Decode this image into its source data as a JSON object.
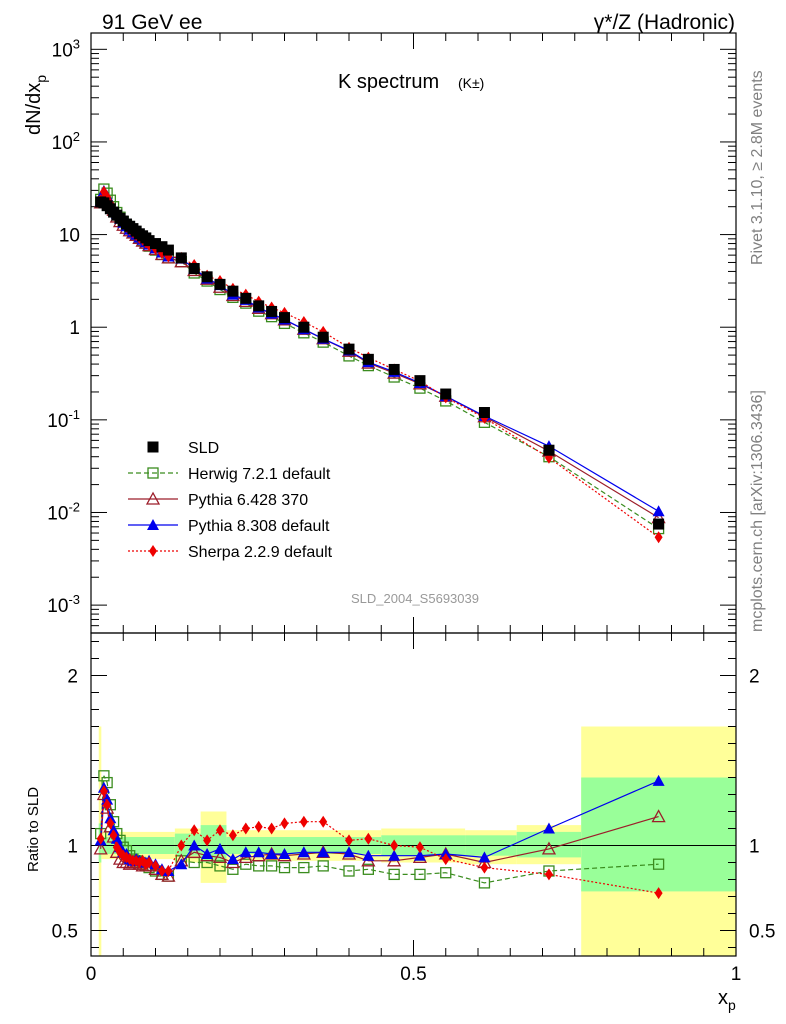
{
  "header": {
    "left": "91 GeV ee",
    "right": "γ*/Z (Hadronic)"
  },
  "side_labels": {
    "top": "Rivet 3.1.10, ≥ 2.8M events",
    "bottom": "mcplots.cern.ch [arXiv:1306.3436]"
  },
  "chart_data": {
    "type": "line",
    "title": "K spectrum",
    "title_sub": "(K±)",
    "watermark": "SLD_2004_S5693039",
    "xlabel": "xp",
    "ylabel_main": "dN/dxp",
    "ylabel_ratio": "Ratio to SLD",
    "xlim": [
      0,
      1
    ],
    "ylim_main": [
      0.0005,
      1500
    ],
    "yscale_main": "log",
    "ylim_ratio": [
      0.35,
      2.25
    ],
    "x_ticks": [
      "0",
      "0.5",
      "1"
    ],
    "y_ticks_main": [
      "10^-3",
      "10^-2",
      "10^-1",
      "1",
      "10",
      "10^2",
      "10^3"
    ],
    "y_ticks_ratio": [
      "0.5",
      "1",
      "2"
    ],
    "legend_position": "lower-left",
    "colors": {
      "data": "#000000",
      "herwig": "#3a8c1e",
      "pythia6": "#9c1d2a",
      "pythia8": "#0000ee",
      "sherpa": "#ee0000",
      "band_inner": "#99ff99",
      "band_outer": "#ffff99"
    },
    "x": [
      0.015,
      0.02,
      0.025,
      0.03,
      0.035,
      0.04,
      0.045,
      0.05,
      0.055,
      0.06,
      0.065,
      0.07,
      0.075,
      0.08,
      0.085,
      0.09,
      0.1,
      0.11,
      0.12,
      0.14,
      0.16,
      0.18,
      0.2,
      0.22,
      0.24,
      0.26,
      0.28,
      0.3,
      0.33,
      0.36,
      0.4,
      0.43,
      0.47,
      0.51,
      0.55,
      0.61,
      0.71,
      0.88
    ],
    "series": [
      {
        "name": "SLD",
        "key": "data",
        "values": [
          22.5,
          22,
          20.5,
          19,
          17.5,
          16.2,
          15,
          14,
          13,
          12.3,
          11.6,
          10.9,
          10.2,
          9.7,
          9.2,
          8.6,
          8,
          7.4,
          6.8,
          5.6,
          4.3,
          3.5,
          2.9,
          2.45,
          2.05,
          1.7,
          1.48,
          1.27,
          1.0,
          0.78,
          0.58,
          0.45,
          0.35,
          0.265,
          0.19,
          0.12,
          0.047,
          0.0075
        ]
      },
      {
        "name": "Herwig 7.2.1 default",
        "key": "herwig",
        "values": [
          24,
          31,
          28,
          23.5,
          20,
          17.3,
          15.4,
          13.8,
          12.6,
          11.5,
          10.6,
          9.9,
          9.2,
          8.6,
          8.1,
          7.5,
          6.8,
          6.1,
          5.6,
          5.1,
          3.85,
          3.15,
          2.55,
          2.1,
          1.82,
          1.49,
          1.3,
          1.1,
          0.87,
          0.69,
          0.49,
          0.385,
          0.29,
          0.22,
          0.16,
          0.094,
          0.04,
          0.0067
        ]
      },
      {
        "name": "Pythia 6.428 370",
        "key": "pythia6",
        "values": [
          22,
          28.5,
          25,
          21,
          18.3,
          15.5,
          13.8,
          12.6,
          11.7,
          11,
          10.4,
          9.8,
          9.1,
          8.5,
          8.1,
          7.6,
          6.9,
          6.1,
          5.6,
          5.1,
          4.1,
          3.3,
          2.7,
          2.2,
          1.9,
          1.6,
          1.4,
          1.2,
          0.95,
          0.75,
          0.55,
          0.41,
          0.32,
          0.245,
          0.18,
          0.108,
          0.046,
          0.0088
        ]
      },
      {
        "name": "Pythia 8.308 default",
        "key": "pythia8",
        "values": [
          23,
          29.5,
          26,
          22,
          19,
          16.8,
          14.8,
          13.4,
          12.3,
          11.3,
          10.6,
          10,
          9.3,
          8.8,
          8.3,
          7.8,
          7.1,
          6.4,
          5.8,
          5.5,
          4.3,
          3.35,
          2.85,
          2.25,
          1.97,
          1.63,
          1.4,
          1.21,
          0.95,
          0.75,
          0.56,
          0.42,
          0.33,
          0.25,
          0.18,
          0.11,
          0.052,
          0.0103
        ]
      },
      {
        "name": "Sherpa 2.2.9 default",
        "key": "sherpa",
        "values": [
          23.5,
          29,
          25.5,
          21.5,
          18.6,
          16.1,
          14.4,
          13.2,
          12.1,
          11.3,
          10.6,
          9.9,
          9.2,
          8.8,
          8.2,
          7.7,
          7.0,
          6.3,
          5.8,
          5.6,
          4.7,
          3.6,
          3.15,
          2.6,
          2.25,
          1.89,
          1.63,
          1.43,
          1.14,
          0.89,
          0.6,
          0.47,
          0.35,
          0.262,
          0.175,
          0.105,
          0.039,
          0.0054
        ]
      }
    ],
    "ratio": {
      "herwig": [
        1.07,
        1.41,
        1.37,
        1.24,
        1.14,
        1.07,
        1.03,
        0.99,
        0.97,
        0.94,
        0.92,
        0.91,
        0.9,
        0.89,
        0.88,
        0.87,
        0.85,
        0.83,
        0.82,
        0.91,
        0.9,
        0.9,
        0.88,
        0.86,
        0.89,
        0.88,
        0.88,
        0.87,
        0.87,
        0.88,
        0.85,
        0.86,
        0.83,
        0.83,
        0.84,
        0.78,
        0.85,
        0.89
      ],
      "pythia6": [
        0.98,
        1.3,
        1.22,
        1.11,
        1.05,
        0.96,
        0.92,
        0.9,
        0.9,
        0.89,
        0.9,
        0.9,
        0.89,
        0.88,
        0.88,
        0.88,
        0.86,
        0.83,
        0.82,
        0.91,
        0.96,
        0.94,
        0.93,
        0.9,
        0.93,
        0.94,
        0.95,
        0.94,
        0.95,
        0.96,
        0.95,
        0.91,
        0.91,
        0.93,
        0.95,
        0.9,
        0.98,
        1.17
      ],
      "pythia8": [
        1.03,
        1.34,
        1.27,
        1.16,
        1.09,
        1.04,
        0.99,
        0.96,
        0.95,
        0.92,
        0.91,
        0.92,
        0.91,
        0.91,
        0.9,
        0.91,
        0.89,
        0.86,
        0.85,
        0.89,
        1.0,
        0.95,
        0.98,
        0.92,
        0.96,
        0.96,
        0.95,
        0.95,
        0.96,
        0.96,
        0.96,
        0.94,
        0.94,
        0.94,
        0.95,
        0.93,
        1.1,
        1.38
      ],
      "sherpa": [
        1.04,
        1.32,
        1.24,
        1.13,
        1.06,
        0.99,
        0.96,
        0.94,
        0.93,
        0.92,
        0.91,
        0.91,
        0.9,
        0.91,
        0.89,
        0.9,
        0.88,
        0.85,
        0.85,
        1.0,
        1.09,
        1.03,
        1.09,
        1.06,
        1.1,
        1.11,
        1.1,
        1.13,
        1.14,
        1.14,
        1.03,
        1.04,
        1.0,
        0.99,
        0.92,
        0.87,
        0.83,
        0.72
      ]
    },
    "bands": [
      {
        "x0": 0.012,
        "x1": 0.016,
        "inner": [
          0.9,
          1.13
        ],
        "outer": [
          0.35,
          1.7
        ]
      },
      {
        "x0": 0.016,
        "x1": 0.13,
        "inner": [
          0.95,
          1.05
        ],
        "outer": [
          0.92,
          1.08
        ]
      },
      {
        "x0": 0.13,
        "x1": 0.17,
        "inner": [
          0.94,
          1.07
        ],
        "outer": [
          0.9,
          1.1
        ]
      },
      {
        "x0": 0.17,
        "x1": 0.21,
        "inner": [
          0.9,
          1.12
        ],
        "outer": [
          0.78,
          1.2
        ]
      },
      {
        "x0": 0.21,
        "x1": 0.45,
        "inner": [
          0.95,
          1.05
        ],
        "outer": [
          0.91,
          1.09
        ]
      },
      {
        "x0": 0.45,
        "x1": 0.58,
        "inner": [
          0.94,
          1.06
        ],
        "outer": [
          0.9,
          1.1
        ]
      },
      {
        "x0": 0.58,
        "x1": 0.66,
        "inner": [
          0.94,
          1.06
        ],
        "outer": [
          0.89,
          1.09
        ]
      },
      {
        "x0": 0.66,
        "x1": 0.76,
        "inner": [
          0.93,
          1.08
        ],
        "outer": [
          0.89,
          1.12
        ]
      },
      {
        "x0": 0.76,
        "x1": 1.0,
        "inner": [
          0.73,
          1.4
        ],
        "outer": [
          0.35,
          1.7
        ]
      }
    ]
  }
}
